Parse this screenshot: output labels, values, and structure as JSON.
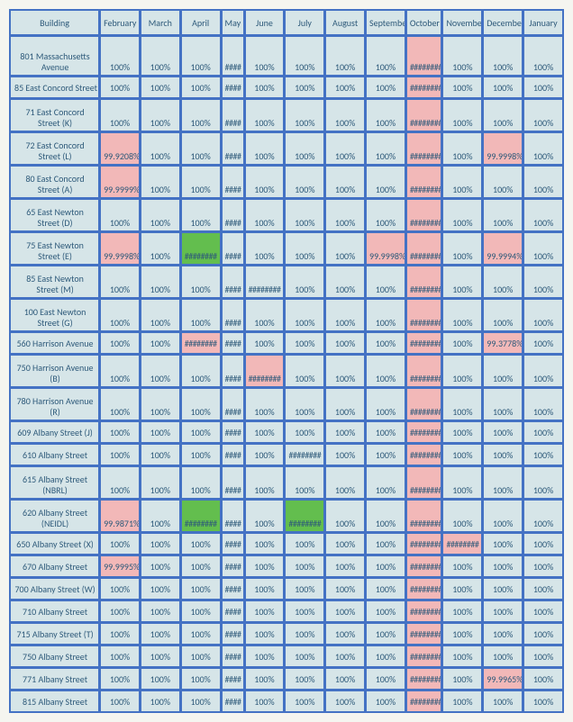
{
  "headers": [
    "Building",
    "February",
    "March",
    "April",
    "May",
    "June",
    "July",
    "August",
    "September",
    "October",
    "November",
    "December",
    "January"
  ],
  "col_classes": [
    "col-building",
    "col-month",
    "col-month",
    "col-month",
    "col-may",
    "col-month",
    "col-month",
    "col-month",
    "col-month",
    "col-oct",
    "col-month",
    "col-month",
    "col-month"
  ],
  "rows": [
    {
      "b": "801 Massachusetts Avenue",
      "bh": 38,
      "c": [
        {
          "v": "100%"
        },
        {
          "v": "100%"
        },
        {
          "v": "100%"
        },
        {
          "v": "####",
          "s": "hash"
        },
        {
          "v": "100%"
        },
        {
          "v": "100%"
        },
        {
          "v": "100%"
        },
        {
          "v": "100%"
        },
        {
          "v": "########",
          "s": "hl-pink hash"
        },
        {
          "v": "100%"
        },
        {
          "v": "100%"
        },
        {
          "v": "100%"
        }
      ]
    },
    {
      "b": "85 East Concord Street",
      "c": [
        {
          "v": "100%"
        },
        {
          "v": "100%"
        },
        {
          "v": "100%"
        },
        {
          "v": "####",
          "s": "hash"
        },
        {
          "v": "100%"
        },
        {
          "v": "100%"
        },
        {
          "v": "100%"
        },
        {
          "v": "100%"
        },
        {
          "v": "########",
          "s": "hl-pink hash"
        },
        {
          "v": "100%"
        },
        {
          "v": "100%"
        },
        {
          "v": "100%"
        }
      ]
    },
    {
      "b": "71 East Concord Street (K)",
      "bh": 30,
      "c": [
        {
          "v": "100%"
        },
        {
          "v": "100%"
        },
        {
          "v": "100%"
        },
        {
          "v": "####",
          "s": "hash"
        },
        {
          "v": "100%"
        },
        {
          "v": "100%"
        },
        {
          "v": "100%"
        },
        {
          "v": "100%"
        },
        {
          "v": "########",
          "s": "hl-pink hash"
        },
        {
          "v": "100%"
        },
        {
          "v": "100%"
        },
        {
          "v": "100%"
        }
      ]
    },
    {
      "b": "72 East Concord Street (L)",
      "bh": 30,
      "c": [
        {
          "v": "99.9208%",
          "s": "hl-pink"
        },
        {
          "v": "100%"
        },
        {
          "v": "100%"
        },
        {
          "v": "####",
          "s": "hash"
        },
        {
          "v": "100%"
        },
        {
          "v": "100%"
        },
        {
          "v": "100%"
        },
        {
          "v": "100%"
        },
        {
          "v": "########",
          "s": "hl-pink hash"
        },
        {
          "v": "100%"
        },
        {
          "v": "99.9998%",
          "s": "hl-pink"
        },
        {
          "v": "100%"
        }
      ]
    },
    {
      "b": "80 East Concord Street (A)",
      "bh": 30,
      "c": [
        {
          "v": "99.9999%",
          "s": "hl-pink"
        },
        {
          "v": "100%"
        },
        {
          "v": "100%"
        },
        {
          "v": "####",
          "s": "hash"
        },
        {
          "v": "100%"
        },
        {
          "v": "100%"
        },
        {
          "v": "100%"
        },
        {
          "v": "100%"
        },
        {
          "v": "########",
          "s": "hl-pink hash"
        },
        {
          "v": "100%"
        },
        {
          "v": "100%"
        },
        {
          "v": "100%"
        }
      ]
    },
    {
      "b": "65 East Newton Street (D)",
      "bh": 30,
      "c": [
        {
          "v": "100%"
        },
        {
          "v": "100%"
        },
        {
          "v": "100%"
        },
        {
          "v": "####",
          "s": "hash"
        },
        {
          "v": "100%"
        },
        {
          "v": "100%"
        },
        {
          "v": "100%"
        },
        {
          "v": "100%"
        },
        {
          "v": "########",
          "s": "hl-pink hash"
        },
        {
          "v": "100%"
        },
        {
          "v": "100%"
        },
        {
          "v": "100%"
        }
      ]
    },
    {
      "b": "75 East Newton Street (E)",
      "bh": 30,
      "c": [
        {
          "v": "99.9998%",
          "s": "hl-pink"
        },
        {
          "v": "100%"
        },
        {
          "v": "########",
          "s": "hl-green hash"
        },
        {
          "v": "####",
          "s": "hash"
        },
        {
          "v": "100%"
        },
        {
          "v": "100%"
        },
        {
          "v": "100%"
        },
        {
          "v": "99.9998%",
          "s": "hl-pink"
        },
        {
          "v": "########",
          "s": "hl-pink hash"
        },
        {
          "v": "100%"
        },
        {
          "v": "99.9994%",
          "s": "hl-pink"
        },
        {
          "v": "100%"
        }
      ]
    },
    {
      "b": "85 East Newton Street (M)",
      "bh": 30,
      "c": [
        {
          "v": "100%"
        },
        {
          "v": "100%"
        },
        {
          "v": "100%"
        },
        {
          "v": "####",
          "s": "hash"
        },
        {
          "v": "########",
          "s": "hash"
        },
        {
          "v": "100%"
        },
        {
          "v": "100%"
        },
        {
          "v": "100%"
        },
        {
          "v": "########",
          "s": "hl-pink hash"
        },
        {
          "v": "100%"
        },
        {
          "v": "100%"
        },
        {
          "v": "100%"
        }
      ]
    },
    {
      "b": "100 East Newton Street (G)",
      "bh": 30,
      "c": [
        {
          "v": "100%"
        },
        {
          "v": "100%"
        },
        {
          "v": "100%"
        },
        {
          "v": "####",
          "s": "hash"
        },
        {
          "v": "100%"
        },
        {
          "v": "100%"
        },
        {
          "v": "100%"
        },
        {
          "v": "100%"
        },
        {
          "v": "########",
          "s": "hl-pink hash"
        },
        {
          "v": "100%"
        },
        {
          "v": "100%"
        },
        {
          "v": "100%"
        }
      ]
    },
    {
      "b": "560 Harrison Avenue",
      "c": [
        {
          "v": "100%"
        },
        {
          "v": "100%"
        },
        {
          "v": "########",
          "s": "hl-pink hash"
        },
        {
          "v": "####",
          "s": "hash"
        },
        {
          "v": "100%"
        },
        {
          "v": "100%"
        },
        {
          "v": "100%"
        },
        {
          "v": "100%"
        },
        {
          "v": "########",
          "s": "hl-pink hash"
        },
        {
          "v": "100%"
        },
        {
          "v": "99.3778%",
          "s": "hl-pink"
        },
        {
          "v": "100%"
        }
      ]
    },
    {
      "b": "750 Harrison Avenue (B)",
      "bh": 30,
      "c": [
        {
          "v": "100%"
        },
        {
          "v": "100%"
        },
        {
          "v": "100%"
        },
        {
          "v": "####",
          "s": "hash"
        },
        {
          "v": "########",
          "s": "hl-pink hash"
        },
        {
          "v": "100%"
        },
        {
          "v": "100%"
        },
        {
          "v": "100%"
        },
        {
          "v": "########",
          "s": "hl-pink hash"
        },
        {
          "v": "100%"
        },
        {
          "v": "100%"
        },
        {
          "v": "100%"
        }
      ]
    },
    {
      "b": "780 Harrison Avenue (R)",
      "bh": 30,
      "c": [
        {
          "v": "100%"
        },
        {
          "v": "100%"
        },
        {
          "v": "100%"
        },
        {
          "v": "####",
          "s": "hash"
        },
        {
          "v": "100%"
        },
        {
          "v": "100%"
        },
        {
          "v": "100%"
        },
        {
          "v": "100%"
        },
        {
          "v": "########",
          "s": "hl-pink hash"
        },
        {
          "v": "100%"
        },
        {
          "v": "100%"
        },
        {
          "v": "100%"
        }
      ]
    },
    {
      "b": "609 Albany Street (J)",
      "c": [
        {
          "v": "100%"
        },
        {
          "v": "100%"
        },
        {
          "v": "100%"
        },
        {
          "v": "####",
          "s": "hash"
        },
        {
          "v": "100%"
        },
        {
          "v": "100%"
        },
        {
          "v": "100%"
        },
        {
          "v": "100%"
        },
        {
          "v": "########",
          "s": "hl-pink hash"
        },
        {
          "v": "100%"
        },
        {
          "v": "100%"
        },
        {
          "v": "100%"
        }
      ]
    },
    {
      "b": "610 Albany Street",
      "c": [
        {
          "v": "100%"
        },
        {
          "v": "100%"
        },
        {
          "v": "100%"
        },
        {
          "v": "####",
          "s": "hash"
        },
        {
          "v": "100%"
        },
        {
          "v": "########",
          "s": "hash"
        },
        {
          "v": "100%"
        },
        {
          "v": "100%"
        },
        {
          "v": "########",
          "s": "hl-pink hash"
        },
        {
          "v": "100%"
        },
        {
          "v": "100%"
        },
        {
          "v": "100%"
        }
      ]
    },
    {
      "b": "615 Albany Street (NBRL)",
      "bh": 30,
      "c": [
        {
          "v": "100%"
        },
        {
          "v": "100%"
        },
        {
          "v": "100%"
        },
        {
          "v": "####",
          "s": "hash"
        },
        {
          "v": "100%"
        },
        {
          "v": "100%"
        },
        {
          "v": "100%"
        },
        {
          "v": "100%"
        },
        {
          "v": "########",
          "s": "hl-pink hash"
        },
        {
          "v": "100%"
        },
        {
          "v": "100%"
        },
        {
          "v": "100%"
        }
      ]
    },
    {
      "b": "620 Albany Street (NEIDL)",
      "bh": 30,
      "c": [
        {
          "v": "99.9871%",
          "s": "hl-pink"
        },
        {
          "v": "100%"
        },
        {
          "v": "########",
          "s": "hl-green hash"
        },
        {
          "v": "####",
          "s": "hash"
        },
        {
          "v": "100%"
        },
        {
          "v": "########",
          "s": "hl-green hash"
        },
        {
          "v": "100%"
        },
        {
          "v": "100%"
        },
        {
          "v": "########",
          "s": "hl-pink hash"
        },
        {
          "v": "100%"
        },
        {
          "v": "100%"
        },
        {
          "v": "100%"
        }
      ]
    },
    {
      "b": "650 Albany Street (X)",
      "c": [
        {
          "v": "100%"
        },
        {
          "v": "100%"
        },
        {
          "v": "100%"
        },
        {
          "v": "####",
          "s": "hash"
        },
        {
          "v": "100%"
        },
        {
          "v": "100%"
        },
        {
          "v": "100%"
        },
        {
          "v": "100%"
        },
        {
          "v": "########",
          "s": "hl-pink hash"
        },
        {
          "v": "########",
          "s": "hl-pink hash"
        },
        {
          "v": "100%"
        },
        {
          "v": "100%"
        }
      ]
    },
    {
      "b": "670 Albany Street",
      "c": [
        {
          "v": "99.9995%",
          "s": "hl-pink"
        },
        {
          "v": "100%"
        },
        {
          "v": "100%"
        },
        {
          "v": "####",
          "s": "hash"
        },
        {
          "v": "100%"
        },
        {
          "v": "100%"
        },
        {
          "v": "100%"
        },
        {
          "v": "100%"
        },
        {
          "v": "########",
          "s": "hl-pink hash"
        },
        {
          "v": "100%"
        },
        {
          "v": "100%"
        },
        {
          "v": "100%"
        }
      ]
    },
    {
      "b": "700 Albany Street (W)",
      "c": [
        {
          "v": "100%"
        },
        {
          "v": "100%"
        },
        {
          "v": "100%"
        },
        {
          "v": "####",
          "s": "hash"
        },
        {
          "v": "100%"
        },
        {
          "v": "100%"
        },
        {
          "v": "100%"
        },
        {
          "v": "100%"
        },
        {
          "v": "########",
          "s": "hl-pink hash"
        },
        {
          "v": "100%"
        },
        {
          "v": "100%"
        },
        {
          "v": "100%"
        }
      ]
    },
    {
      "b": "710 Albany Street",
      "c": [
        {
          "v": "100%"
        },
        {
          "v": "100%"
        },
        {
          "v": "100%"
        },
        {
          "v": "####",
          "s": "hash"
        },
        {
          "v": "100%"
        },
        {
          "v": "100%"
        },
        {
          "v": "100%"
        },
        {
          "v": "100%"
        },
        {
          "v": "########",
          "s": "hl-pink hash"
        },
        {
          "v": "100%"
        },
        {
          "v": "100%"
        },
        {
          "v": "100%"
        }
      ]
    },
    {
      "b": "715 Albany Street (T)",
      "c": [
        {
          "v": "100%"
        },
        {
          "v": "100%"
        },
        {
          "v": "100%"
        },
        {
          "v": "####",
          "s": "hash"
        },
        {
          "v": "100%"
        },
        {
          "v": "100%"
        },
        {
          "v": "100%"
        },
        {
          "v": "100%"
        },
        {
          "v": "########",
          "s": "hl-pink hash"
        },
        {
          "v": "100%"
        },
        {
          "v": "100%"
        },
        {
          "v": "100%"
        }
      ]
    },
    {
      "b": "750 Albany Street",
      "c": [
        {
          "v": "100%"
        },
        {
          "v": "100%"
        },
        {
          "v": "100%"
        },
        {
          "v": "####",
          "s": "hash"
        },
        {
          "v": "100%"
        },
        {
          "v": "100%"
        },
        {
          "v": "100%"
        },
        {
          "v": "100%"
        },
        {
          "v": "########",
          "s": "hl-pink hash"
        },
        {
          "v": "100%"
        },
        {
          "v": "100%"
        },
        {
          "v": "100%"
        }
      ]
    },
    {
      "b": "771 Albany Street",
      "c": [
        {
          "v": "100%"
        },
        {
          "v": "100%"
        },
        {
          "v": "100%"
        },
        {
          "v": "####",
          "s": "hash"
        },
        {
          "v": "100%"
        },
        {
          "v": "100%"
        },
        {
          "v": "100%"
        },
        {
          "v": "100%"
        },
        {
          "v": "########",
          "s": "hl-pink hash"
        },
        {
          "v": "100%"
        },
        {
          "v": "99.9965%",
          "s": "hl-pink"
        },
        {
          "v": "100%"
        }
      ]
    },
    {
      "b": "815 Albany Street",
      "c": [
        {
          "v": "100%"
        },
        {
          "v": "100%"
        },
        {
          "v": "100%"
        },
        {
          "v": "####",
          "s": "hash"
        },
        {
          "v": "100%"
        },
        {
          "v": "100%"
        },
        {
          "v": "100%"
        },
        {
          "v": "100%"
        },
        {
          "v": "########",
          "s": "hl-pink hash"
        },
        {
          "v": "100%"
        },
        {
          "v": "100%"
        },
        {
          "v": "100%"
        }
      ]
    }
  ]
}
